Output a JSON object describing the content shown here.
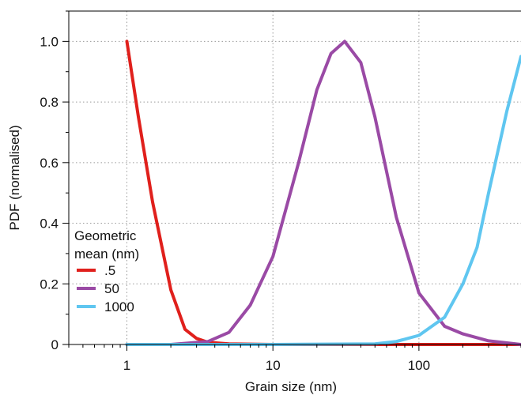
{
  "chart_data": {
    "type": "line",
    "xscale": "log",
    "xlabel": "Grain size (nm)",
    "ylabel": "PDF (normalised)",
    "xlim": [
      0.4,
      500
    ],
    "ylim": [
      0,
      1.1
    ],
    "grid": true,
    "x_ticks": [
      {
        "value": 1,
        "label": "1"
      },
      {
        "value": 10,
        "label": "10"
      },
      {
        "value": 100,
        "label": "100"
      }
    ],
    "y_ticks": [
      {
        "value": 0,
        "label": "0"
      },
      {
        "value": 0.2,
        "label": "0.2"
      },
      {
        "value": 0.4,
        "label": "0.4"
      },
      {
        "value": 0.6,
        "label": "0.6"
      },
      {
        "value": 0.8,
        "label": "0.8"
      },
      {
        "value": 1.0,
        "label": "1.0"
      }
    ],
    "legend": {
      "title_lines": [
        "Geometric",
        "mean (nm)"
      ],
      "placement": "left"
    },
    "series": [
      {
        "name": ".5",
        "color": "#e0201c",
        "points": [
          [
            1,
            1.0
          ],
          [
            1.2,
            0.75
          ],
          [
            1.5,
            0.47
          ],
          [
            2,
            0.18
          ],
          [
            2.5,
            0.05
          ],
          [
            3,
            0.02
          ],
          [
            3.6,
            0.007
          ],
          [
            5,
            0.002
          ],
          [
            10,
            0
          ],
          [
            100,
            0
          ],
          [
            500,
            0
          ]
        ]
      },
      {
        "name": "50",
        "color": "#9a4aa5",
        "points": [
          [
            1,
            0
          ],
          [
            2,
            0
          ],
          [
            3.6,
            0.01
          ],
          [
            5,
            0.04
          ],
          [
            7,
            0.13
          ],
          [
            10,
            0.29
          ],
          [
            15,
            0.6
          ],
          [
            20,
            0.84
          ],
          [
            25,
            0.96
          ],
          [
            31,
            1.0
          ],
          [
            40,
            0.93
          ],
          [
            50,
            0.75
          ],
          [
            70,
            0.42
          ],
          [
            100,
            0.17
          ],
          [
            150,
            0.06
          ],
          [
            200,
            0.035
          ],
          [
            300,
            0.012
          ],
          [
            500,
            0
          ]
        ]
      },
      {
        "name": "1000",
        "color": "#5fc6f0",
        "points": [
          [
            1,
            0
          ],
          [
            10,
            0
          ],
          [
            50,
            0.002
          ],
          [
            70,
            0.01
          ],
          [
            100,
            0.03
          ],
          [
            150,
            0.09
          ],
          [
            200,
            0.2
          ],
          [
            250,
            0.32
          ],
          [
            300,
            0.5
          ],
          [
            400,
            0.77
          ],
          [
            500,
            0.95
          ]
        ]
      }
    ]
  }
}
